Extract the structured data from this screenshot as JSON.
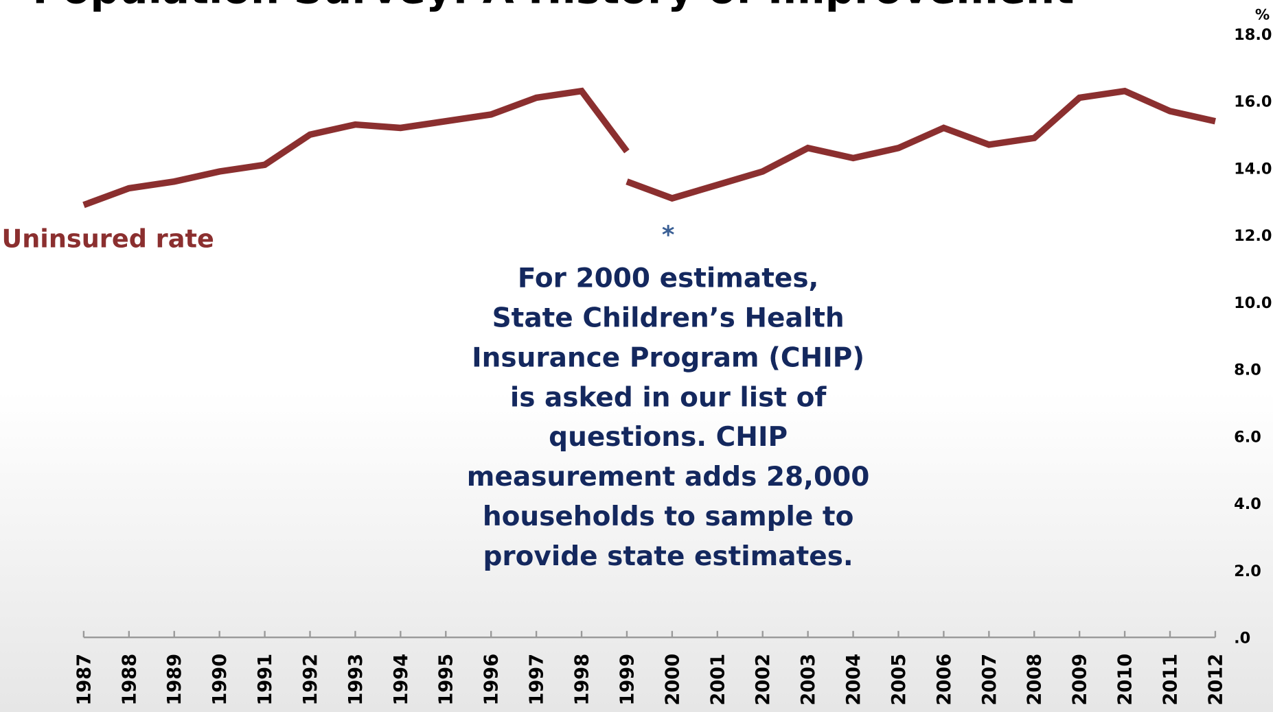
{
  "chart_data": {
    "type": "line",
    "title": "Population Survey: A History of Improvement",
    "y_label": "%",
    "annotations": [
      "Uninsured rate",
      "*"
    ],
    "note_lines": [
      "For 2000 estimates,",
      "State Children’s Health",
      "Insurance Program (CHIP)",
      "is asked in our list of",
      "questions.  CHIP",
      "measurement adds 28,000",
      "households to sample to",
      "provide state estimates."
    ],
    "categories": [
      "1987",
      "1988",
      "1989",
      "1990",
      "1991",
      "1992",
      "1993",
      "1994",
      "1995",
      "1996",
      "1997",
      "1998",
      "1999",
      "2000",
      "2001",
      "2002",
      "2003",
      "2004",
      "2005",
      "2006",
      "2007",
      "2008",
      "2009",
      "2010",
      "2011",
      "2012"
    ],
    "series": [
      {
        "color": "#8b2f2f",
        "values": [
          12.9,
          13.4,
          13.6,
          13.9,
          14.1,
          15.0,
          15.3,
          15.2,
          15.4,
          15.6,
          16.1,
          16.3,
          14.5,
          null,
          null,
          null,
          null,
          null,
          null,
          null,
          null,
          null,
          null,
          null,
          null,
          null
        ]
      },
      {
        "color": "#8b2f2f",
        "values": [
          null,
          null,
          null,
          null,
          null,
          null,
          null,
          null,
          null,
          null,
          null,
          null,
          13.6,
          13.1,
          13.5,
          13.9,
          14.6,
          14.3,
          14.6,
          15.2,
          14.7,
          14.9,
          16.1,
          16.3,
          15.7,
          15.4
        ]
      }
    ],
    "ylim": [
      0,
      18
    ],
    "yticks": [
      {
        "value": 0,
        "label": ".0"
      },
      {
        "value": 2,
        "label": "2.0"
      },
      {
        "value": 4,
        "label": "4.0"
      },
      {
        "value": 6,
        "label": "6.0"
      },
      {
        "value": 8,
        "label": "8.0"
      },
      {
        "value": 10,
        "label": "10.0"
      },
      {
        "value": 12,
        "label": "12.0"
      },
      {
        "value": 14,
        "label": "14.0"
      },
      {
        "value": 16,
        "label": "16.0"
      },
      {
        "value": 18,
        "label": "18.0"
      }
    ],
    "grid": false
  }
}
